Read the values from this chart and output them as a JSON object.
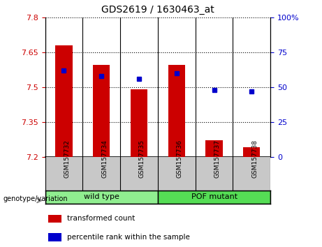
{
  "title": "GDS2619 / 1630463_at",
  "samples": [
    "GSM157732",
    "GSM157734",
    "GSM157735",
    "GSM157736",
    "GSM157737",
    "GSM157738"
  ],
  "transformed_counts": [
    7.68,
    7.595,
    7.49,
    7.595,
    7.27,
    7.24
  ],
  "percentile_ranks": [
    62,
    58,
    56,
    60,
    48,
    47
  ],
  "ylim_left": [
    7.2,
    7.8
  ],
  "ylim_right": [
    0,
    100
  ],
  "yticks_left": [
    7.2,
    7.35,
    7.5,
    7.65,
    7.8
  ],
  "ytick_labels_left": [
    "7.2",
    "7.35",
    "7.5",
    "7.65",
    "7.8"
  ],
  "yticks_right": [
    0,
    25,
    50,
    75,
    100
  ],
  "ytick_labels_right": [
    "0",
    "25",
    "50",
    "75",
    "100%"
  ],
  "bar_color": "#cc0000",
  "dot_color": "#0000cc",
  "bar_bottom": 7.2,
  "groups": [
    {
      "label": "wild type",
      "indices": [
        0,
        1,
        2
      ],
      "color": "#90ee90"
    },
    {
      "label": "POF mutant",
      "indices": [
        3,
        4,
        5
      ],
      "color": "#55dd55"
    }
  ],
  "group_label_prefix": "genotype/variation",
  "legend_items": [
    {
      "color": "#cc0000",
      "label": "transformed count"
    },
    {
      "color": "#0000cc",
      "label": "percentile rank within the sample"
    }
  ],
  "tick_color_left": "#cc0000",
  "tick_color_right": "#0000cc",
  "background_label": "#c8c8c8",
  "background_group_wt": "#90ee90",
  "background_group_pof": "#55dd55"
}
